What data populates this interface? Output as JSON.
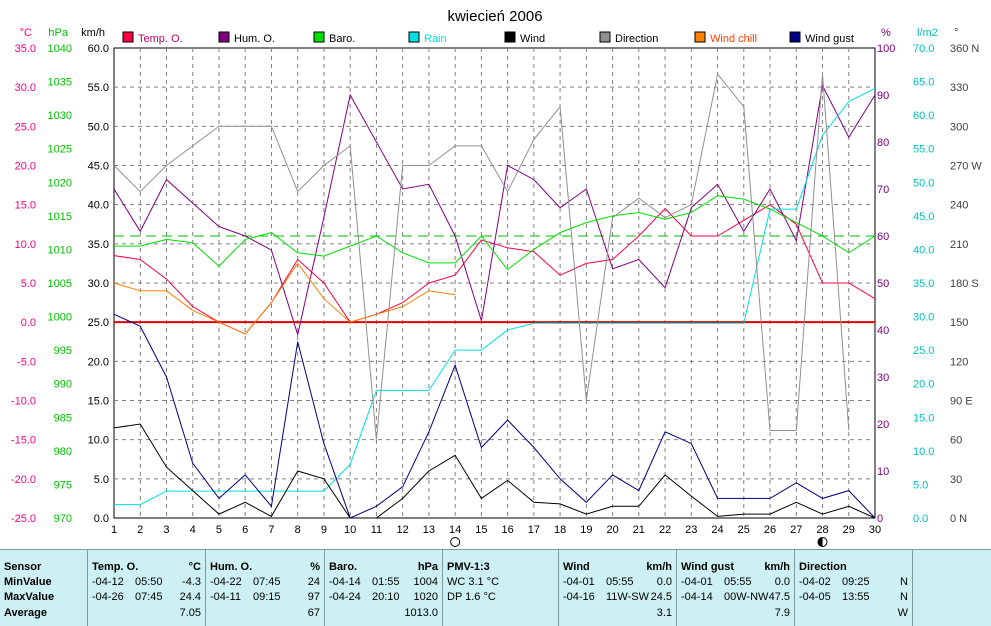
{
  "chart_data": {
    "type": "line",
    "title": "kwiecień 2006",
    "x": [
      1,
      2,
      3,
      4,
      5,
      6,
      7,
      8,
      9,
      10,
      11,
      12,
      13,
      14,
      15,
      16,
      17,
      18,
      19,
      20,
      21,
      22,
      23,
      24,
      25,
      26,
      27,
      28,
      29,
      30
    ],
    "xlim": [
      1,
      30
    ],
    "axes": {
      "temp": {
        "unit": "°C",
        "min": -25,
        "max": 35,
        "step": 5,
        "color": "#ff0080",
        "labels": [
          "-25.0",
          "-20.0",
          "-15.0",
          "-10.0",
          "-5.0",
          "0.0",
          "5.0",
          "10.0",
          "15.0",
          "20.0",
          "25.0",
          "30.0",
          "35.0"
        ]
      },
      "baro": {
        "unit": "hPa",
        "min": 970,
        "max": 1040,
        "step": 5,
        "color": "#00c000",
        "labels": [
          "970",
          "975",
          "980",
          "985",
          "990",
          "995",
          "1000",
          "1005",
          "1010",
          "1015",
          "1020",
          "1025",
          "1030",
          "1035",
          "1040"
        ]
      },
      "wind": {
        "unit": "km/h",
        "min": 0,
        "max": 60,
        "step": 5,
        "color": "#000000",
        "labels": [
          "0.0",
          "5.0",
          "10.0",
          "15.0",
          "20.0",
          "25.0",
          "30.0",
          "35.0",
          "40.0",
          "45.0",
          "50.0",
          "55.0",
          "60.0"
        ]
      },
      "hum": {
        "unit": "%",
        "min": 0,
        "max": 100,
        "step": 10,
        "color": "#800080",
        "labels": [
          "0",
          "10",
          "20",
          "30",
          "40",
          "50",
          "60",
          "70",
          "80",
          "90",
          "100"
        ]
      },
      "rain": {
        "unit": "l/m2",
        "min": 0,
        "max": 70,
        "step": 5,
        "color": "#00c0c0",
        "labels": [
          "0.0",
          "5.0",
          "10.0",
          "15.0",
          "20.0",
          "25.0",
          "30.0",
          "35.0",
          "40.0",
          "45.0",
          "50.0",
          "55.0",
          "60.0",
          "65.0",
          "70.0"
        ]
      },
      "dir": {
        "unit": "°",
        "min": 0,
        "max": 360,
        "step": 30,
        "color": "#404040",
        "labels": [
          "0 N",
          "30",
          "60",
          "90 E",
          "120",
          "150",
          "180 S",
          "210",
          "240",
          "270 W",
          "300",
          "330",
          "360 N"
        ]
      }
    },
    "series": [
      {
        "name": "Temp. O.",
        "axis": "temp",
        "color": "#ff0040",
        "values": [
          8.5,
          8,
          5.5,
          2,
          0,
          -1.5,
          2.5,
          8,
          5,
          0,
          1,
          2.5,
          5,
          6,
          10.5,
          9.5,
          9,
          6,
          7.5,
          8,
          11,
          14.5,
          11,
          11,
          13,
          15,
          12.5,
          5,
          5,
          3
        ]
      },
      {
        "name": "Hum. O.",
        "axis": "hum",
        "color": "#800080",
        "values": [
          70,
          61,
          72,
          67,
          62,
          60,
          57,
          39,
          64,
          90,
          80,
          70,
          71,
          60,
          42,
          75,
          72,
          66,
          70,
          53,
          55,
          49,
          66,
          71,
          61,
          70,
          59,
          92,
          81,
          90
        ]
      },
      {
        "name": "Baro.",
        "axis": "baro",
        "color": "#00e000",
        "values": [
          1010.5,
          1010.5,
          1011.5,
          1011,
          1007.5,
          1011.5,
          1012.5,
          1009.5,
          1009,
          1010.5,
          1012,
          1009.5,
          1008,
          1008,
          1012,
          1007,
          1010,
          1012.5,
          1014,
          1015,
          1015.5,
          1014.5,
          1015.5,
          1018,
          1017.5,
          1016,
          1014,
          1012,
          1009.5,
          1012
        ]
      },
      {
        "name": "Rain",
        "axis": "rain",
        "color": "#00e0e0",
        "values": [
          2,
          2,
          4,
          4,
          4,
          4,
          4,
          4,
          4,
          8,
          19,
          19,
          19,
          25,
          25,
          28,
          29,
          29,
          29,
          29,
          29,
          29,
          29,
          29,
          29,
          46,
          46,
          57,
          62,
          64
        ]
      },
      {
        "name": "Wind",
        "axis": "wind",
        "color": "#000000",
        "values": [
          11.5,
          12,
          6.5,
          3.5,
          0.5,
          2,
          0.2,
          6,
          5,
          0,
          0,
          2.5,
          6,
          8,
          2.5,
          4.8,
          2,
          1.8,
          0.5,
          1.5,
          1.5,
          5.5,
          2.8,
          0.2,
          0.5,
          0.5,
          2,
          0.5,
          1.5,
          0
        ]
      },
      {
        "name": "Direction",
        "axis": "dir",
        "color": "#909090",
        "values": [
          270,
          250,
          270,
          285,
          300,
          300,
          300,
          250,
          270,
          285,
          60,
          270,
          270,
          285,
          285,
          250,
          290,
          315,
          90,
          230,
          245,
          230,
          240,
          340,
          315,
          67,
          67,
          340,
          67,
          null
        ]
      },
      {
        "name": "Wind chill",
        "axis": "temp",
        "color": "#ff8000",
        "values": [
          5,
          4,
          4,
          1.5,
          0,
          -1.5,
          2.5,
          7.5,
          3,
          0,
          1,
          2,
          4,
          3.5,
          null,
          null,
          null,
          null,
          null,
          null,
          null,
          14,
          null,
          null,
          null,
          null,
          null,
          null,
          null,
          null
        ]
      },
      {
        "name": "Wind gust",
        "axis": "wind",
        "color": "#000080",
        "values": [
          26,
          24.5,
          18,
          7,
          2.5,
          5.5,
          1.5,
          22.5,
          9.5,
          0,
          1.5,
          4,
          11,
          19.5,
          9,
          12.5,
          9,
          5,
          2,
          5.5,
          3.5,
          11,
          9.5,
          2.5,
          2.5,
          2.5,
          4.5,
          2.5,
          3.5,
          0
        ]
      }
    ],
    "reference_lines": [
      {
        "axis": "temp",
        "value": 0,
        "color": "#e00000",
        "style": "solid"
      },
      {
        "axis": "baro",
        "value": 1012,
        "color": "#00c000",
        "style": "dashed"
      }
    ],
    "markers": [
      {
        "x": 14,
        "symbol": "new moon"
      },
      {
        "x": 28,
        "symbol": "first quarter"
      }
    ],
    "grid": true,
    "legend_position": "top"
  },
  "stats": {
    "row_labels": [
      "Sensor",
      "MinValue",
      "MaxValue",
      "Average"
    ],
    "temp": {
      "name": "Temp. O.",
      "unit": "°C",
      "min": [
        "-04-12",
        "05:50",
        "-4.3"
      ],
      "max": [
        "-04-26",
        "07:45",
        "24.4"
      ],
      "avg": "7.05"
    },
    "hum": {
      "name": "Hum. O.",
      "unit": "%",
      "min": [
        "-04-22",
        "07:45",
        "24"
      ],
      "max": [
        "-04-11",
        "09:15",
        "97"
      ],
      "avg": "67"
    },
    "baro": {
      "name": "Baro.",
      "unit": "hPa",
      "min": [
        "-04-14",
        "01:55",
        "1004"
      ],
      "max": [
        "-04-24",
        "20:10",
        "1020"
      ],
      "avg": "1013.0"
    },
    "pmv": {
      "name": "PMV-1:3",
      "line1": "WC 3.1 °C",
      "line2": "DP 1.6 °C"
    },
    "wind": {
      "name": "Wind",
      "unit": "km/h",
      "min": [
        "-04-01",
        "05:55",
        "0.0"
      ],
      "max": [
        "-04-16",
        "11W-SW",
        "24.5"
      ],
      "avg": "3.1"
    },
    "gust": {
      "name": "Wind gust",
      "unit": "km/h",
      "min": [
        "-04-01",
        "05:55",
        "0.0"
      ],
      "max": [
        "-04-14",
        "00W-NW",
        "47.5"
      ],
      "avg": "7.9"
    },
    "dir": {
      "name": "Direction",
      "min": [
        "-04-02",
        "09:25",
        "N"
      ],
      "max": [
        "-04-05",
        "13:55",
        "N"
      ],
      "avg": "W"
    }
  }
}
